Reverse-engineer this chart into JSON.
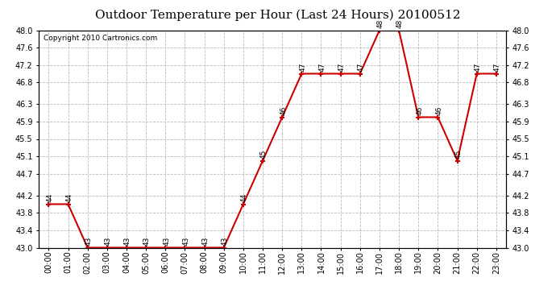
{
  "title": "Outdoor Temperature per Hour (Last 24 Hours) 20100512",
  "copyright": "Copyright 2010 Cartronics.com",
  "hours": [
    "00:00",
    "01:00",
    "02:00",
    "03:00",
    "04:00",
    "05:00",
    "06:00",
    "07:00",
    "08:00",
    "09:00",
    "10:00",
    "11:00",
    "12:00",
    "13:00",
    "14:00",
    "15:00",
    "16:00",
    "17:00",
    "18:00",
    "19:00",
    "20:00",
    "21:00",
    "22:00",
    "23:00"
  ],
  "temps": [
    44,
    44,
    43,
    43,
    43,
    43,
    43,
    43,
    43,
    43,
    44,
    45,
    46,
    47,
    47,
    47,
    47,
    48,
    48,
    46,
    46,
    45,
    47,
    47
  ],
  "ylim_min": 43.0,
  "ylim_max": 48.0,
  "line_color": "#cc0000",
  "marker_color": "#cc0000",
  "bg_color": "#ffffff",
  "grid_color": "#bbbbbb",
  "title_fontsize": 11,
  "copyright_fontsize": 6.5,
  "label_fontsize": 6.5,
  "tick_fontsize": 7,
  "yticks": [
    43.0,
    43.4,
    43.8,
    44.2,
    44.7,
    45.1,
    45.5,
    45.9,
    46.3,
    46.8,
    47.2,
    47.6,
    48.0
  ]
}
